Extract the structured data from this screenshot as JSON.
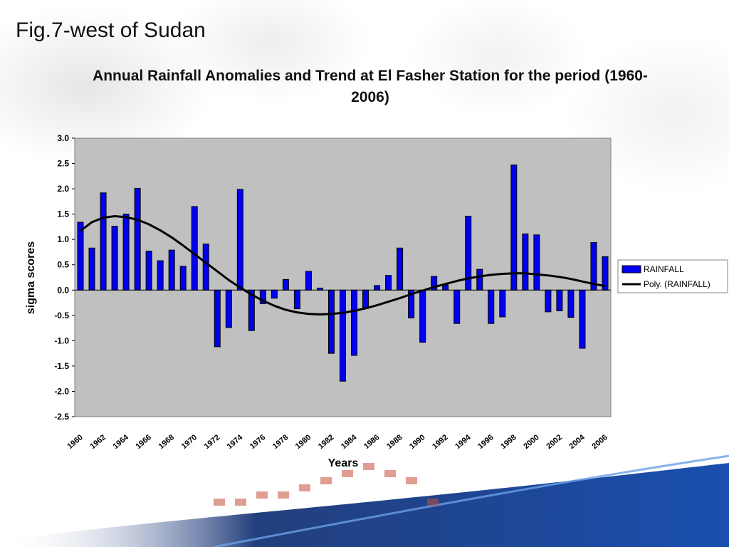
{
  "slide": {
    "title": "Fig.7-west of Sudan"
  },
  "colors": {
    "bar": "#0000ee",
    "bar_stroke": "#000000",
    "plot_bg": "#c0c0c0",
    "trend": "#000000"
  },
  "chart_data": {
    "type": "bar",
    "title": "Annual Rainfall Anomalies and Trend at El Fasher Station for the period (1960-2006)",
    "xlabel": "Years",
    "ylabel": "sigma scores",
    "ylim": [
      -2.5,
      3.0
    ],
    "yticks": [
      "3.0",
      "2.5",
      "2.0",
      "1.5",
      "1.0",
      "0.5",
      "0.0",
      "-0.5",
      "-1.0",
      "-1.5",
      "-2.0",
      "-2.5"
    ],
    "xticks": [
      "1960",
      "1962",
      "1964",
      "1966",
      "1968",
      "1970",
      "1972",
      "1974",
      "1976",
      "1978",
      "1980",
      "1982",
      "1984",
      "1986",
      "1988",
      "1990",
      "1992",
      "1994",
      "1996",
      "1998",
      "2000",
      "2002",
      "2004",
      "2006"
    ],
    "grid": false,
    "legend_position": "right",
    "categories": [
      1960,
      1961,
      1962,
      1963,
      1964,
      1965,
      1966,
      1967,
      1968,
      1969,
      1970,
      1971,
      1972,
      1973,
      1974,
      1975,
      1976,
      1977,
      1978,
      1979,
      1980,
      1981,
      1982,
      1983,
      1984,
      1985,
      1986,
      1987,
      1988,
      1989,
      1990,
      1991,
      1992,
      1993,
      1994,
      1995,
      1996,
      1997,
      1998,
      1999,
      2000,
      2001,
      2002,
      2003,
      2004,
      2005,
      2006
    ],
    "series": [
      {
        "name": "RAINFALL",
        "kind": "bar",
        "values": [
          1.34,
          0.83,
          1.92,
          1.26,
          1.5,
          2.01,
          0.77,
          0.58,
          0.79,
          0.47,
          1.65,
          0.91,
          -1.12,
          -0.74,
          1.99,
          -0.8,
          -0.27,
          -0.16,
          0.21,
          -0.37,
          0.37,
          0.04,
          -1.25,
          -1.8,
          -1.29,
          -0.35,
          0.09,
          0.29,
          0.83,
          -0.55,
          -1.03,
          0.27,
          0.1,
          -0.66,
          1.46,
          0.41,
          -0.66,
          -0.53,
          2.47,
          1.11,
          1.09,
          -0.43,
          -0.41,
          -0.54,
          -1.15,
          0.94,
          0.66
        ]
      },
      {
        "name": "Poly. (RAINFALL)",
        "kind": "line",
        "values": [
          1.17,
          1.34,
          1.43,
          1.46,
          1.44,
          1.39,
          1.3,
          1.18,
          1.04,
          0.88,
          0.71,
          0.54,
          0.37,
          0.2,
          0.05,
          -0.09,
          -0.21,
          -0.31,
          -0.39,
          -0.44,
          -0.47,
          -0.48,
          -0.47,
          -0.45,
          -0.41,
          -0.36,
          -0.3,
          -0.23,
          -0.16,
          -0.08,
          -0.01,
          0.06,
          0.12,
          0.18,
          0.23,
          0.27,
          0.3,
          0.32,
          0.33,
          0.33,
          0.31,
          0.29,
          0.26,
          0.22,
          0.17,
          0.12,
          0.08
        ]
      }
    ]
  }
}
